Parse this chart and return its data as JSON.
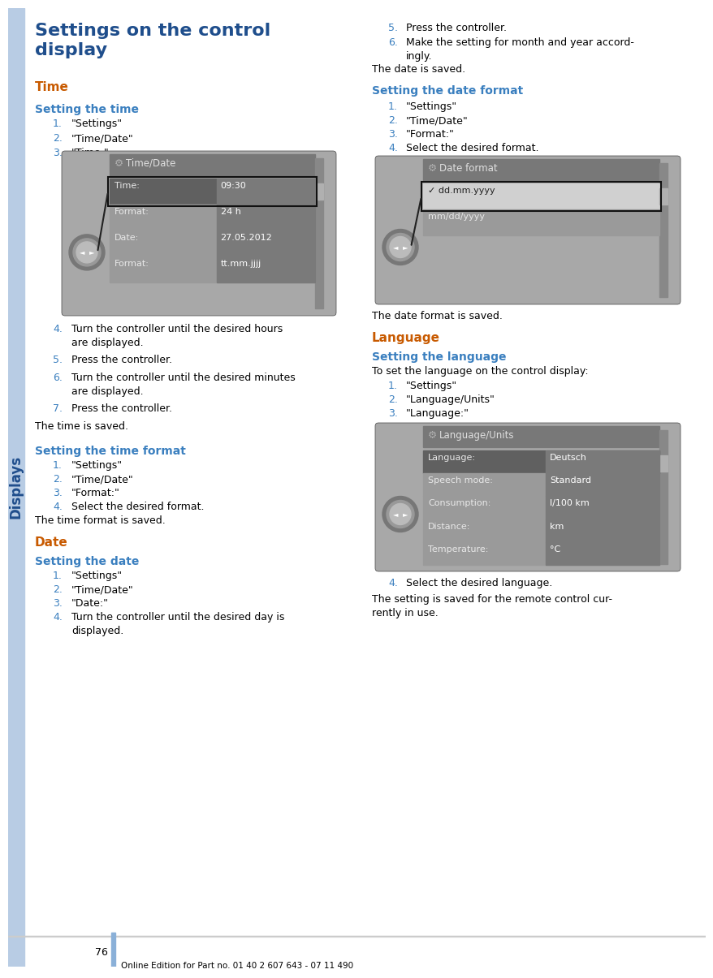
{
  "page_bg": "#ffffff",
  "sidebar_color": "#b8cce4",
  "sidebar_text": "Displays",
  "sidebar_text_color": "#1f4e8c",
  "title_main": "Settings on the control\ndisplay",
  "title_color": "#1f4e8c",
  "section_color": "#c85a00",
  "subsection_color": "#3a7fbf",
  "body_text_color": "#000000",
  "num_color": "#3a7fbf",
  "page_number": "76",
  "footer_text": "Online Edition for Part no. 01 40 2 607 643 - 07 11 490",
  "footer_bar_color": "#8ab0d8",
  "col_divider": "#cccccc",
  "screen_outer_bg": "#a8a8a8",
  "screen_header_bg": "#787878",
  "screen_row_normal": "#9a9a9a",
  "screen_row_highlighted": "#606060",
  "screen_header_text": "#e0e0e0",
  "screen_row_text": "#e8e8e8",
  "screen_value_box": "#7a7a7a",
  "screen_value_text": "#ffffff",
  "screen_selected_text": "#ffffff",
  "screen2_check_row_bg": "#d0d0d0",
  "screen2_check_row_text": "#202020",
  "knob_outer": "#888888",
  "knob_inner": "#aaaaaa",
  "knob_arrow": "#ffffff",
  "callout_line": "#222222"
}
